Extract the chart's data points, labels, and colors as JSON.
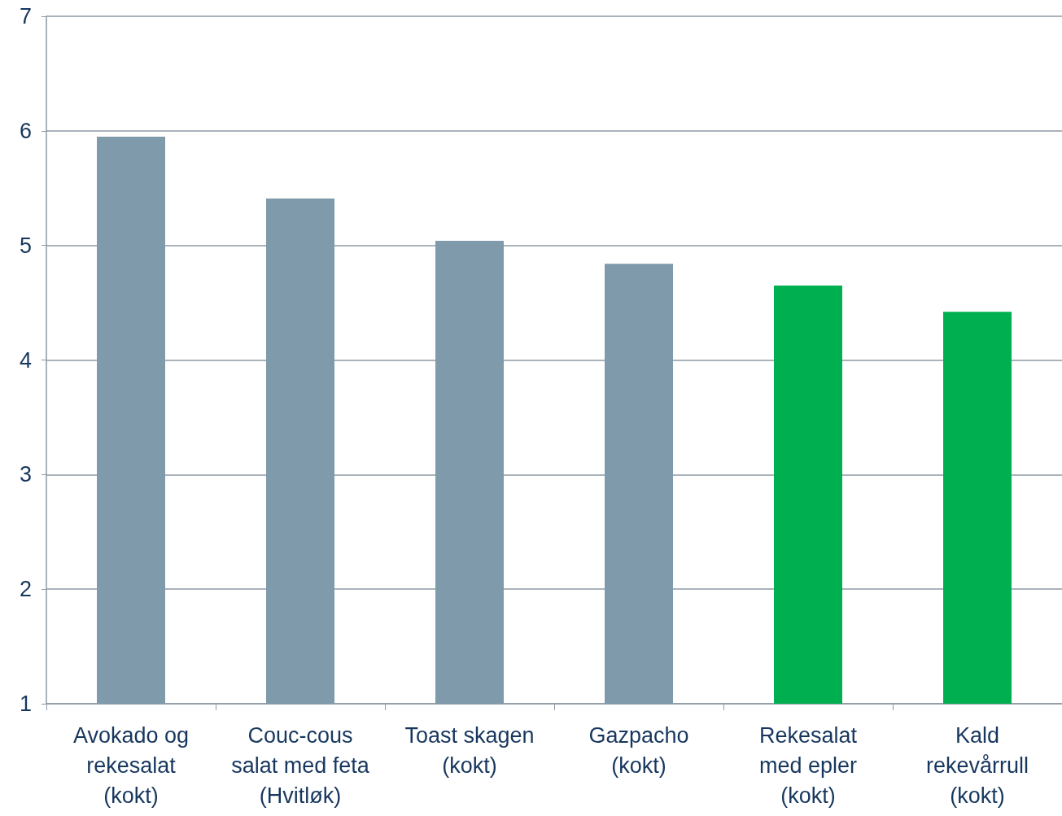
{
  "chart_data": {
    "type": "bar",
    "categories": [
      "Avokado og\nrekesalat\n(kokt)",
      "Couc-cous\nsalat med feta\n(Hvitløk)",
      "Toast skagen\n(kokt)",
      "Gazpacho\n(kokt)",
      "Rekesalat\nmed epler\n(kokt)",
      "Kald\nrekevårrull\n(kokt)"
    ],
    "values": [
      5.95,
      5.41,
      5.04,
      4.84,
      4.65,
      4.42
    ],
    "colors": [
      "#7f9aaa",
      "#7f9aaa",
      "#7f9aaa",
      "#7f9aaa",
      "#00b050",
      "#00b050"
    ],
    "ylim": [
      1,
      7
    ],
    "yticks": [
      1,
      2,
      3,
      4,
      5,
      6,
      7
    ],
    "grid": "y"
  }
}
